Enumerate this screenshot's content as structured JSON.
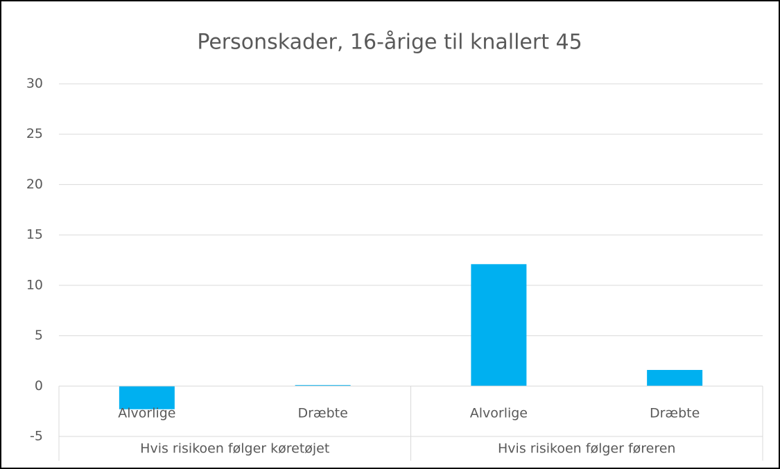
{
  "chart_data": {
    "type": "bar",
    "title": "Personskader,  16-årige til knallert 45",
    "categories": [
      "Alvorlige",
      "Dræbte",
      "Alvorlige",
      "Dræbte"
    ],
    "groups": [
      "Hvis risikoen følger køretøjet",
      "Hvis risikoen følger føreren"
    ],
    "values": [
      -2.3,
      0.1,
      12.1,
      1.6
    ],
    "color": "#00b0f0",
    "ylim": [
      -5,
      30
    ],
    "yticks": [
      -5,
      0,
      5,
      10,
      15,
      20,
      25,
      30
    ],
    "grid": true
  }
}
